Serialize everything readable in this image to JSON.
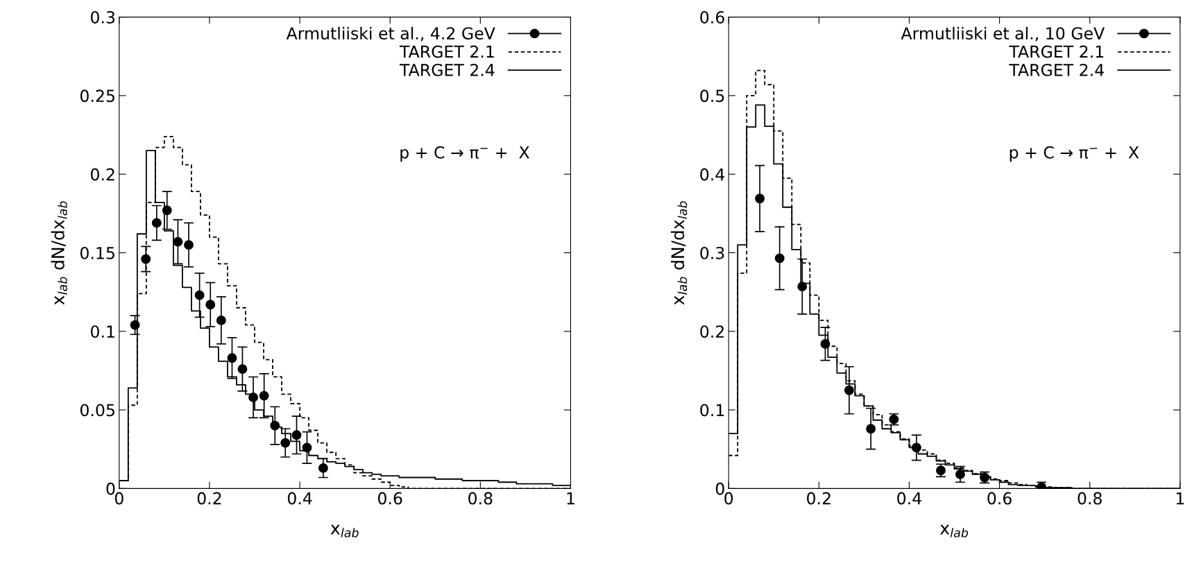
{
  "chart_data": [
    {
      "type": "step",
      "xlabel": "x$_{lab}$",
      "ylabel": "x$_{lab}$ dN/dx$_{lab}$",
      "annotations": [
        "p + C → π$^{−}$ +  X"
      ],
      "legend": "top right",
      "grid": false,
      "xlim": [
        0,
        1
      ],
      "xticks": [
        0,
        0.2,
        0.4,
        0.6,
        0.8,
        1
      ],
      "ylim": [
        0,
        0.3
      ],
      "yticks": [
        0,
        0.05,
        0.1,
        0.15,
        0.2,
        0.25,
        0.3
      ],
      "x": [
        0,
        0.02,
        0.04,
        0.06,
        0.08,
        0.1,
        0.12,
        0.14,
        0.16,
        0.18,
        0.2,
        0.22,
        0.24,
        0.26,
        0.28,
        0.3,
        0.32,
        0.34,
        0.36,
        0.38,
        0.4,
        0.42,
        0.44,
        0.46,
        0.48,
        0.5,
        0.52,
        0.54,
        0.56,
        0.58,
        0.6,
        0.62,
        0.64,
        0.66,
        0.68,
        0.7,
        0.72,
        0.74,
        0.76,
        0.78,
        0.8,
        0.82,
        0.84,
        0.86,
        0.88,
        0.9,
        0.92,
        0.94,
        0.96,
        0.98,
        1
      ],
      "series": [
        {
          "type": "scatter",
          "name": "Armutliiski et al., 4.2 GeV",
          "color": "#000000",
          "marker": "circle",
          "x": [
            0.035,
            0.059,
            0.083,
            0.106,
            0.13,
            0.154,
            0.178,
            0.202,
            0.226,
            0.25,
            0.273,
            0.297,
            0.321,
            0.345,
            0.368,
            0.393,
            0.416,
            0.452
          ],
          "values": [
            0.104,
            0.146,
            0.169,
            0.177,
            0.157,
            0.155,
            0.123,
            0.117,
            0.107,
            0.083,
            0.076,
            0.058,
            0.059,
            0.04,
            0.029,
            0.034,
            0.026,
            0.013
          ],
          "errors": [
            0.006,
            0.008,
            0.011,
            0.012,
            0.014,
            0.014,
            0.014,
            0.014,
            0.015,
            0.013,
            0.014,
            0.013,
            0.014,
            0.012,
            0.009,
            0.012,
            0.01,
            0.006
          ]
        },
        {
          "name": "TARGET 2.1",
          "color": "#000000",
          "line_style": "dashed",
          "values": [
            0.005,
            0.053,
            0.124,
            0.182,
            0.217,
            0.224,
            0.217,
            0.206,
            0.189,
            0.174,
            0.16,
            0.143,
            0.129,
            0.115,
            0.104,
            0.093,
            0.082,
            0.071,
            0.06,
            0.054,
            0.045,
            0.037,
            0.029,
            0.023,
            0.019,
            0.015,
            0.01,
            0.008,
            0.006,
            0.004,
            0.002,
            0.001,
            0,
            0,
            0,
            0,
            0,
            0,
            0,
            0,
            0,
            0,
            0,
            0,
            0,
            0,
            0,
            0,
            0,
            0,
            0
          ]
        },
        {
          "name": "TARGET 2.4",
          "color": "#000000",
          "line_style": "solid",
          "values": [
            0.005,
            0.064,
            0.162,
            0.215,
            0.182,
            0.164,
            0.142,
            0.128,
            0.113,
            0.102,
            0.09,
            0.081,
            0.071,
            0.066,
            0.06,
            0.05,
            0.046,
            0.039,
            0.035,
            0.03,
            0.024,
            0.021,
            0.019,
            0.017,
            0.016,
            0.014,
            0.012,
            0.01,
            0.009,
            0.008,
            0.008,
            0.007,
            0.007,
            0.007,
            0.007,
            0.006,
            0.006,
            0.006,
            0.005,
            0.005,
            0.005,
            0.005,
            0.004,
            0.004,
            0.003,
            0.003,
            0.003,
            0.003,
            0.002,
            0.002,
            0.002
          ]
        }
      ]
    },
    {
      "type": "step",
      "xlabel": "x$_{lab}$",
      "ylabel": "x$_{lab}$ dN/dx$_{lab}$",
      "annotations": [
        "p + C → π$^{−}$ +  X"
      ],
      "legend": "top right",
      "grid": false,
      "xlim": [
        0,
        1
      ],
      "xticks": [
        0,
        0.2,
        0.4,
        0.6,
        0.8,
        1
      ],
      "ylim": [
        0,
        0.6
      ],
      "yticks": [
        0,
        0.1,
        0.2,
        0.3,
        0.4,
        0.5,
        0.6
      ],
      "x": [
        0,
        0.02,
        0.04,
        0.06,
        0.08,
        0.1,
        0.12,
        0.14,
        0.16,
        0.18,
        0.2,
        0.22,
        0.24,
        0.26,
        0.28,
        0.3,
        0.32,
        0.34,
        0.36,
        0.38,
        0.4,
        0.42,
        0.44,
        0.46,
        0.48,
        0.5,
        0.52,
        0.54,
        0.56,
        0.58,
        0.6,
        0.62,
        0.64,
        0.66,
        0.68,
        0.7,
        0.72,
        0.74,
        0.76,
        0.78,
        0.8,
        0.82,
        0.84,
        0.86,
        0.88,
        0.9,
        0.92,
        0.94,
        0.96,
        0.98,
        1
      ],
      "series": [
        {
          "type": "scatter",
          "name": "Armutliiski et al., 10 GeV",
          "color": "#000000",
          "marker": "circle",
          "x": [
            0.069,
            0.113,
            0.163,
            0.214,
            0.267,
            0.315,
            0.366,
            0.416,
            0.47,
            0.513,
            0.567,
            0.693
          ],
          "values": [
            0.369,
            0.293,
            0.257,
            0.184,
            0.125,
            0.076,
            0.088,
            0.052,
            0.023,
            0.018,
            0.014,
            0.002
          ],
          "errors": [
            0.042,
            0.04,
            0.035,
            0.021,
            0.03,
            0.026,
            0.007,
            0.016,
            0.008,
            0.01,
            0.007,
            0.006
          ]
        },
        {
          "name": "TARGET 2.1",
          "color": "#000000",
          "line_style": "dashed",
          "values": [
            0.042,
            0.274,
            0.5,
            0.532,
            0.514,
            0.455,
            0.395,
            0.336,
            0.287,
            0.246,
            0.214,
            0.181,
            0.159,
            0.137,
            0.12,
            0.105,
            0.094,
            0.081,
            0.072,
            0.063,
            0.054,
            0.049,
            0.044,
            0.036,
            0.032,
            0.026,
            0.023,
            0.019,
            0.015,
            0.012,
            0.01,
            0.007,
            0.005,
            0.004,
            0.003,
            0.002,
            0.001,
            0.001,
            0,
            0,
            0,
            0,
            0,
            0,
            0,
            0,
            0,
            0,
            0,
            0,
            0
          ]
        },
        {
          "name": "TARGET 2.4",
          "color": "#000000",
          "line_style": "solid",
          "values": [
            0.07,
            0.31,
            0.46,
            0.488,
            0.461,
            0.413,
            0.358,
            0.304,
            0.261,
            0.222,
            0.195,
            0.167,
            0.147,
            0.133,
            0.118,
            0.105,
            0.087,
            0.076,
            0.071,
            0.062,
            0.052,
            0.044,
            0.041,
            0.035,
            0.03,
            0.025,
            0.022,
            0.018,
            0.015,
            0.011,
            0.008,
            0.005,
            0.004,
            0.004,
            0.002,
            0.001,
            0.001,
            0.001,
            0,
            0,
            0,
            0,
            0,
            0,
            0,
            0,
            0,
            0,
            0,
            0,
            0
          ]
        }
      ]
    }
  ]
}
